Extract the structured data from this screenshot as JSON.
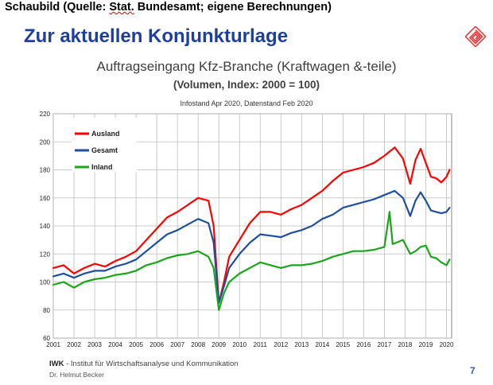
{
  "caption": {
    "prefix": "Schaubild (Quelle: ",
    "stat": "Stat.",
    "suffix": " Bundesamt; eigene Berechnungen)"
  },
  "slide_title": "Zur aktuellen Konjunkturlage",
  "logo_icon": "iwk-maze-logo-icon",
  "footer": {
    "org_abbr": "IWK",
    "org_rest": " - Institut für Wirtschaftsanalyse und Kommunikation",
    "author": "Dr. Helmut Becker",
    "page": "7"
  },
  "chart_data": {
    "type": "line",
    "title": "Auftragseingang Kfz-Branche (Kraftwagen &-teile)",
    "subtitle": "(Volumen, Index: 2000 = 100)",
    "note": "Infostand Apr 2020, Datenstand Feb 2020",
    "xlabel": "",
    "ylabel": "",
    "x_ticks": [
      "2001",
      "2002",
      "2003",
      "2004",
      "2005",
      "2006",
      "2007",
      "2008",
      "2009",
      "2010",
      "2011",
      "2012",
      "2013",
      "2014",
      "2015",
      "2016",
      "2017",
      "2018",
      "2019",
      "2020"
    ],
    "xlim": [
      2001,
      2020.25
    ],
    "ylim": [
      60,
      220
    ],
    "y_ticks": [
      60,
      80,
      100,
      120,
      140,
      160,
      180,
      200,
      220
    ],
    "grid": true,
    "legend_position": "top-left",
    "series": [
      {
        "name": "Ausland",
        "color": "#ff0000",
        "points": [
          [
            2001,
            110
          ],
          [
            2001.5,
            112
          ],
          [
            2002,
            106
          ],
          [
            2002.5,
            110
          ],
          [
            2003,
            113
          ],
          [
            2003.5,
            111
          ],
          [
            2004,
            115
          ],
          [
            2004.5,
            118
          ],
          [
            2005,
            122
          ],
          [
            2005.5,
            130
          ],
          [
            2006,
            138
          ],
          [
            2006.5,
            146
          ],
          [
            2007,
            150
          ],
          [
            2007.5,
            155
          ],
          [
            2008,
            160
          ],
          [
            2008.5,
            158
          ],
          [
            2008.75,
            140
          ],
          [
            2009,
            85
          ],
          [
            2009.25,
            100
          ],
          [
            2009.5,
            118
          ],
          [
            2010,
            130
          ],
          [
            2010.5,
            142
          ],
          [
            2011,
            150
          ],
          [
            2011.5,
            150
          ],
          [
            2012,
            148
          ],
          [
            2012.5,
            152
          ],
          [
            2013,
            155
          ],
          [
            2013.5,
            160
          ],
          [
            2014,
            165
          ],
          [
            2014.5,
            172
          ],
          [
            2015,
            178
          ],
          [
            2015.5,
            180
          ],
          [
            2016,
            182
          ],
          [
            2016.5,
            185
          ],
          [
            2017,
            190
          ],
          [
            2017.5,
            196
          ],
          [
            2017.9,
            188
          ],
          [
            2018.25,
            170
          ],
          [
            2018.5,
            187
          ],
          [
            2018.75,
            195
          ],
          [
            2019,
            185
          ],
          [
            2019.25,
            175
          ],
          [
            2019.5,
            174
          ],
          [
            2019.75,
            171
          ],
          [
            2020,
            175
          ],
          [
            2020.15,
            180
          ]
        ]
      },
      {
        "name": "Gesamt",
        "color": "#1f4e9c",
        "points": [
          [
            2001,
            104
          ],
          [
            2001.5,
            106
          ],
          [
            2002,
            103
          ],
          [
            2002.5,
            106
          ],
          [
            2003,
            108
          ],
          [
            2003.5,
            108
          ],
          [
            2004,
            111
          ],
          [
            2004.5,
            113
          ],
          [
            2005,
            116
          ],
          [
            2005.5,
            122
          ],
          [
            2006,
            128
          ],
          [
            2006.5,
            134
          ],
          [
            2007,
            137
          ],
          [
            2007.5,
            141
          ],
          [
            2008,
            145
          ],
          [
            2008.5,
            142
          ],
          [
            2008.75,
            128
          ],
          [
            2009,
            85
          ],
          [
            2009.25,
            97
          ],
          [
            2009.5,
            110
          ],
          [
            2010,
            120
          ],
          [
            2010.5,
            128
          ],
          [
            2011,
            134
          ],
          [
            2011.5,
            133
          ],
          [
            2012,
            132
          ],
          [
            2012.5,
            135
          ],
          [
            2013,
            137
          ],
          [
            2013.5,
            140
          ],
          [
            2014,
            145
          ],
          [
            2014.5,
            148
          ],
          [
            2015,
            153
          ],
          [
            2015.5,
            155
          ],
          [
            2016,
            157
          ],
          [
            2016.5,
            159
          ],
          [
            2017,
            162
          ],
          [
            2017.5,
            165
          ],
          [
            2017.9,
            160
          ],
          [
            2018.25,
            147
          ],
          [
            2018.5,
            158
          ],
          [
            2018.75,
            164
          ],
          [
            2019,
            158
          ],
          [
            2019.25,
            151
          ],
          [
            2019.5,
            150
          ],
          [
            2019.75,
            149
          ],
          [
            2020,
            150
          ],
          [
            2020.15,
            153
          ]
        ]
      },
      {
        "name": "Inland",
        "color": "#1aa51a",
        "points": [
          [
            2001,
            98
          ],
          [
            2001.5,
            100
          ],
          [
            2002,
            96
          ],
          [
            2002.5,
            100
          ],
          [
            2003,
            102
          ],
          [
            2003.5,
            103
          ],
          [
            2004,
            105
          ],
          [
            2004.5,
            106
          ],
          [
            2005,
            108
          ],
          [
            2005.5,
            112
          ],
          [
            2006,
            114
          ],
          [
            2006.5,
            117
          ],
          [
            2007,
            119
          ],
          [
            2007.5,
            120
          ],
          [
            2008,
            122
          ],
          [
            2008.5,
            118
          ],
          [
            2008.75,
            110
          ],
          [
            2009,
            80
          ],
          [
            2009.25,
            92
          ],
          [
            2009.5,
            100
          ],
          [
            2010,
            106
          ],
          [
            2010.5,
            110
          ],
          [
            2011,
            114
          ],
          [
            2011.5,
            112
          ],
          [
            2012,
            110
          ],
          [
            2012.5,
            112
          ],
          [
            2013,
            112
          ],
          [
            2013.5,
            113
          ],
          [
            2014,
            115
          ],
          [
            2014.5,
            118
          ],
          [
            2015,
            120
          ],
          [
            2015.5,
            122
          ],
          [
            2016,
            122
          ],
          [
            2016.5,
            123
          ],
          [
            2017,
            125
          ],
          [
            2017.25,
            150
          ],
          [
            2017.4,
            127
          ],
          [
            2017.9,
            130
          ],
          [
            2018.25,
            120
          ],
          [
            2018.5,
            122
          ],
          [
            2018.75,
            125
          ],
          [
            2019,
            126
          ],
          [
            2019.25,
            118
          ],
          [
            2019.5,
            117
          ],
          [
            2019.75,
            114
          ],
          [
            2020,
            112
          ],
          [
            2020.15,
            116
          ]
        ]
      }
    ]
  }
}
